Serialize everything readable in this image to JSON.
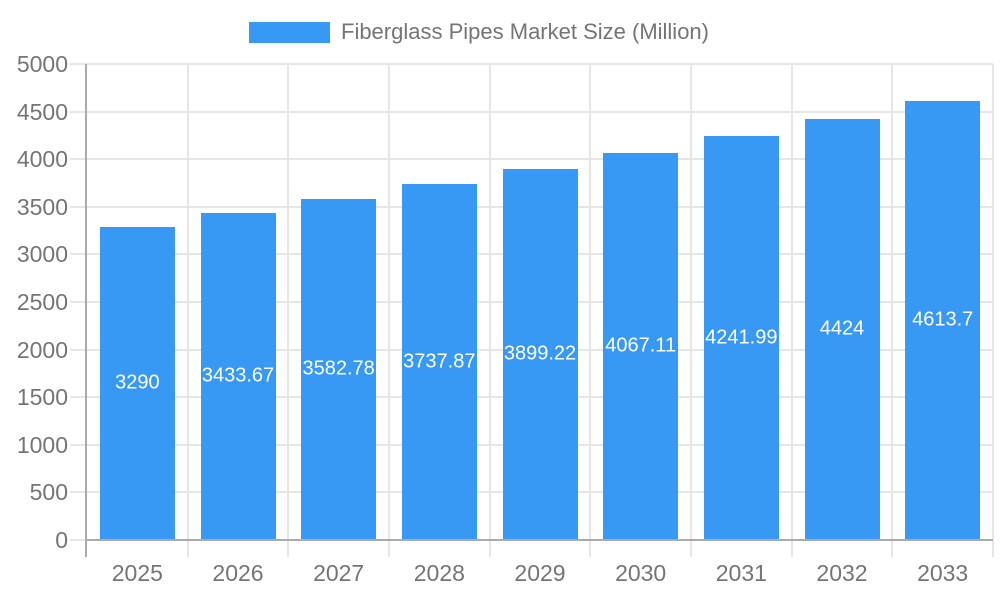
{
  "legend": {
    "label": "Fiberglass Pipes Market Size (Million)"
  },
  "chart_data": {
    "type": "bar",
    "title": "Fiberglass Pipes Market Size (Million)",
    "categories": [
      "2025",
      "2026",
      "2027",
      "2028",
      "2029",
      "2030",
      "2031",
      "2032",
      "2033"
    ],
    "values": [
      3290,
      3433.67,
      3582.78,
      3737.87,
      3899.22,
      4067.11,
      4241.99,
      4424,
      4613.7
    ],
    "bar_labels": [
      "3290",
      "3433.67",
      "3582.78",
      "3737.87",
      "3899.22",
      "4067.11",
      "4241.99",
      "4424",
      "4613.7"
    ],
    "series_name": "Fiberglass Pipes Market Size (Million)",
    "xlabel": "",
    "ylabel": "",
    "ylim": [
      0,
      5000
    ],
    "y_ticks": [
      0,
      500,
      1000,
      1500,
      2000,
      2500,
      3000,
      3500,
      4000,
      4500,
      5000
    ],
    "grid": true,
    "legend_position": "top-center",
    "colors": {
      "bar": "#3899F4",
      "axis_line": "#ababab",
      "gridline": "#e6e6e6",
      "tick": "#e6e6e6",
      "axis_text": "#757575",
      "bar_label_text": "#ffffff",
      "background": "#ffffff"
    }
  }
}
